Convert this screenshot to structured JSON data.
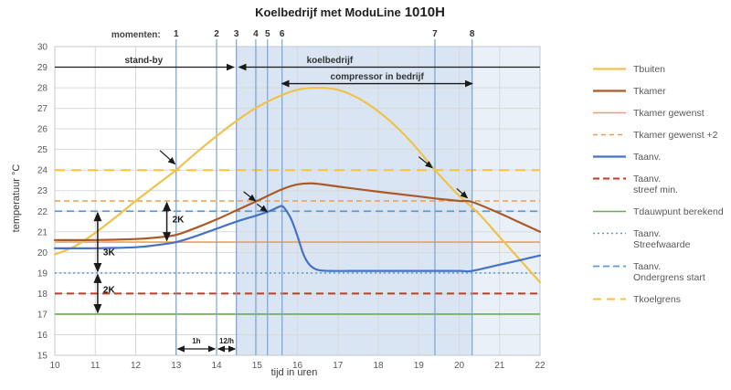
{
  "title": {
    "main": "Koelbedrijf met ModuLine",
    "model": "1010H"
  },
  "axes": {
    "x_label": "tijd  in uren",
    "y_label": "temperatuur  °C",
    "x_ticks": [
      10,
      11,
      12,
      13,
      14,
      15,
      16,
      17,
      18,
      19,
      20,
      21,
      22
    ],
    "y_ticks": [
      15,
      16,
      17,
      18,
      19,
      20,
      21,
      22,
      23,
      24,
      25,
      26,
      27,
      28,
      29,
      30
    ]
  },
  "colors": {
    "tbuiten": "#f0c24a",
    "tkamer": "#ab5a27",
    "tkamer_gewenst": "#e8a25c",
    "tkamer_gewenst_p2": "#ee9d50",
    "taanv": "#4472c4",
    "taanv_streef_min": "#c23b2a",
    "tdauwpunt": "#6bac4b",
    "taanv_streefwaarde": "#5b9bd5",
    "taanv_ondergrens": "#5b9bd5",
    "tkoelgrens": "#fdc134",
    "moment_line": "#7aa3d6",
    "grid": "#d9d9d9",
    "shade_dark": "#d9e5f3",
    "shade_light": "#e9f0f8",
    "annotation": "#1a1a1a"
  },
  "chart_data": {
    "type": "line",
    "title": "Koelbedrijf met ModuLine 1010H",
    "xlabel": "tijd in uren",
    "ylabel": "temperatuur °C",
    "x_range": [
      10,
      22
    ],
    "y_range": [
      15,
      30
    ],
    "grid": true,
    "legend_position": "right",
    "series": [
      {
        "name": "Tbuiten",
        "color": "#f0c24a",
        "width": 2.2,
        "points": [
          [
            10,
            19.9
          ],
          [
            10.5,
            20.3
          ],
          [
            11,
            20.95
          ],
          [
            11.5,
            21.7
          ],
          [
            12,
            22.5
          ],
          [
            12.5,
            23.25
          ],
          [
            13,
            24.0
          ],
          [
            13.5,
            24.85
          ],
          [
            14,
            25.65
          ],
          [
            14.5,
            26.4
          ],
          [
            15,
            27.05
          ],
          [
            15.5,
            27.55
          ],
          [
            16,
            27.9
          ],
          [
            16.5,
            28.0
          ],
          [
            17,
            27.9
          ],
          [
            17.5,
            27.5
          ],
          [
            18,
            26.85
          ],
          [
            18.5,
            26.0
          ],
          [
            19,
            24.95
          ],
          [
            19.4,
            24.0
          ],
          [
            20,
            22.75
          ],
          [
            20.5,
            21.85
          ],
          [
            21,
            20.75
          ],
          [
            21.5,
            19.65
          ],
          [
            22,
            18.55
          ]
        ]
      },
      {
        "name": "Tkamer",
        "color": "#ab5a27",
        "width": 2.2,
        "points": [
          [
            10,
            20.6
          ],
          [
            11,
            20.6
          ],
          [
            12,
            20.65
          ],
          [
            12.5,
            20.72
          ],
          [
            13,
            20.85
          ],
          [
            13.5,
            21.2
          ],
          [
            14,
            21.6
          ],
          [
            14.5,
            22.05
          ],
          [
            15,
            22.5
          ],
          [
            15.6,
            23.05
          ],
          [
            16,
            23.3
          ],
          [
            16.4,
            23.35
          ],
          [
            17,
            23.2
          ],
          [
            18,
            22.95
          ],
          [
            19,
            22.72
          ],
          [
            19.4,
            22.62
          ],
          [
            20,
            22.5
          ],
          [
            20.32,
            22.45
          ],
          [
            21,
            21.9
          ],
          [
            21.5,
            21.45
          ],
          [
            22,
            21.0
          ]
        ]
      },
      {
        "name": "Taanv.",
        "color": "#4472c4",
        "width": 2.2,
        "points": [
          [
            10,
            20.2
          ],
          [
            11,
            20.2
          ],
          [
            12,
            20.25
          ],
          [
            12.5,
            20.35
          ],
          [
            13,
            20.5
          ],
          [
            13.5,
            20.8
          ],
          [
            14,
            21.15
          ],
          [
            14.5,
            21.5
          ],
          [
            15,
            21.8
          ],
          [
            15.3,
            22.0
          ],
          [
            15.55,
            22.22
          ],
          [
            15.62,
            22.25
          ],
          [
            15.7,
            22.1
          ],
          [
            15.85,
            21.6
          ],
          [
            16,
            20.8
          ],
          [
            16.15,
            19.9
          ],
          [
            16.3,
            19.4
          ],
          [
            16.5,
            19.15
          ],
          [
            16.8,
            19.1
          ],
          [
            17.5,
            19.1
          ],
          [
            19,
            19.1
          ],
          [
            20,
            19.1
          ],
          [
            20.32,
            19.1
          ],
          [
            21,
            19.4
          ],
          [
            21.5,
            19.62
          ],
          [
            22,
            19.85
          ]
        ]
      }
    ],
    "reference_lines": [
      {
        "name": "Tkoelgrens",
        "T": 24,
        "color": "#fdc134",
        "dash": "11,7",
        "width": 2
      },
      {
        "name": "Tkamer gewenst +2",
        "T": 22.5,
        "color": "#ee9d50",
        "dash": "6,4",
        "width": 1.6
      },
      {
        "name": "Taanv. Ondergrens start",
        "T": 22,
        "color": "#5b9bd5",
        "dash": "8,5",
        "width": 1.8
      },
      {
        "name": "Tkamer gewenst",
        "T": 20.5,
        "color": "#e8a25c",
        "dash": "",
        "width": 1.6
      },
      {
        "name": "Taanv. Streefwaarde",
        "T": 19,
        "color": "#5b9bd5",
        "dash": "2,3",
        "width": 1.4
      },
      {
        "name": "Taanv. streef min.",
        "T": 18,
        "color": "#c23b2a",
        "dash": "8,5",
        "width": 2
      },
      {
        "name": "Tdauwpunt berekend",
        "T": 17,
        "color": "#6bac4b",
        "dash": "",
        "width": 1.6
      }
    ],
    "shading": [
      {
        "t1": 14.49,
        "t2": 20.32,
        "color": "#d9e5f3"
      },
      {
        "t1": 20.32,
        "t2": 22,
        "color": "#e9f0f8"
      }
    ],
    "moments_label": "momenten:",
    "moments": [
      {
        "n": "1",
        "t": 13.0
      },
      {
        "n": "2",
        "t": 14.0
      },
      {
        "n": "3",
        "t": 14.49
      },
      {
        "n": "4",
        "t": 14.97
      },
      {
        "n": "5",
        "t": 15.26
      },
      {
        "n": "6",
        "t": 15.62
      },
      {
        "n": "7",
        "t": 19.4
      },
      {
        "n": "8",
        "t": 20.32
      }
    ],
    "phase_arrows": [
      {
        "label": "stand-by",
        "t1": 10,
        "t2": 14.42,
        "T": 29,
        "head": "end",
        "label_t": 12.2
      },
      {
        "label": "koelbedrijf",
        "t1": 14.56,
        "t2": 22,
        "T": 29,
        "head": "start",
        "label_t": 16.8
      },
      {
        "label": "compressor in bedrijf",
        "t1": 15.62,
        "t2": 20.32,
        "T": 28.2,
        "head": "both",
        "label_t": 17.97
      }
    ],
    "delta_arrows": [
      {
        "t": 11.06,
        "T1": 22.0,
        "T2": 19.0,
        "label": "3K",
        "label_T": 19.85
      },
      {
        "t": 11.06,
        "T1": 19.0,
        "T2": 17.0,
        "label": "2K",
        "label_T": 18.05
      },
      {
        "t": 12.77,
        "T1": 22.5,
        "T2": 20.5,
        "label": "2K",
        "label_T": 21.45
      }
    ],
    "pointer_arrows": [
      {
        "from": [
          12.6,
          24.95
        ],
        "to": [
          12.97,
          24.3
        ]
      },
      {
        "from": [
          14.67,
          22.95
        ],
        "to": [
          14.96,
          22.5
        ]
      },
      {
        "from": [
          15.0,
          22.35
        ],
        "to": [
          15.25,
          21.98
        ]
      },
      {
        "from": [
          19.0,
          24.65
        ],
        "to": [
          19.33,
          24.12
        ]
      },
      {
        "from": [
          19.94,
          23.1
        ],
        "to": [
          20.2,
          22.65
        ]
      }
    ],
    "interval_markers": [
      {
        "label": "1h",
        "t1": 13,
        "t2": 14
      },
      {
        "label": "12/h",
        "t1": 14,
        "t2": 14.5
      }
    ],
    "legend": [
      {
        "label": "Tbuiten",
        "color": "#f0c24a",
        "dash": "",
        "width": 2.2
      },
      {
        "label": "Tkamer",
        "color": "#ab5a27",
        "dash": "",
        "width": 2.2
      },
      {
        "label": "Tkamer gewenst",
        "color": "#e8a25c",
        "dash": "",
        "width": 1.6
      },
      {
        "label": "Tkamer gewenst +2",
        "color": "#ee9d50",
        "dash": "5,4",
        "width": 1.6
      },
      {
        "label": "Taanv.",
        "color": "#4472c4",
        "dash": "",
        "width": 2.2
      },
      {
        "label": "Taanv.\nstreef min.",
        "color": "#c23b2a",
        "dash": "7,4",
        "width": 2
      },
      {
        "label": "Tdauwpunt berekend",
        "color": "#6bac4b",
        "dash": "",
        "width": 1.6
      },
      {
        "label": "Taanv.\nStreefwaarde",
        "color": "#5b9bd5",
        "dash": "2,3",
        "width": 1.4
      },
      {
        "label": "Taanv.\nOndergrens start",
        "color": "#5b9bd5",
        "dash": "7,4",
        "width": 1.8
      },
      {
        "label": "Tkoelgrens",
        "color": "#fdc134",
        "dash": "9,6",
        "width": 2
      }
    ]
  }
}
